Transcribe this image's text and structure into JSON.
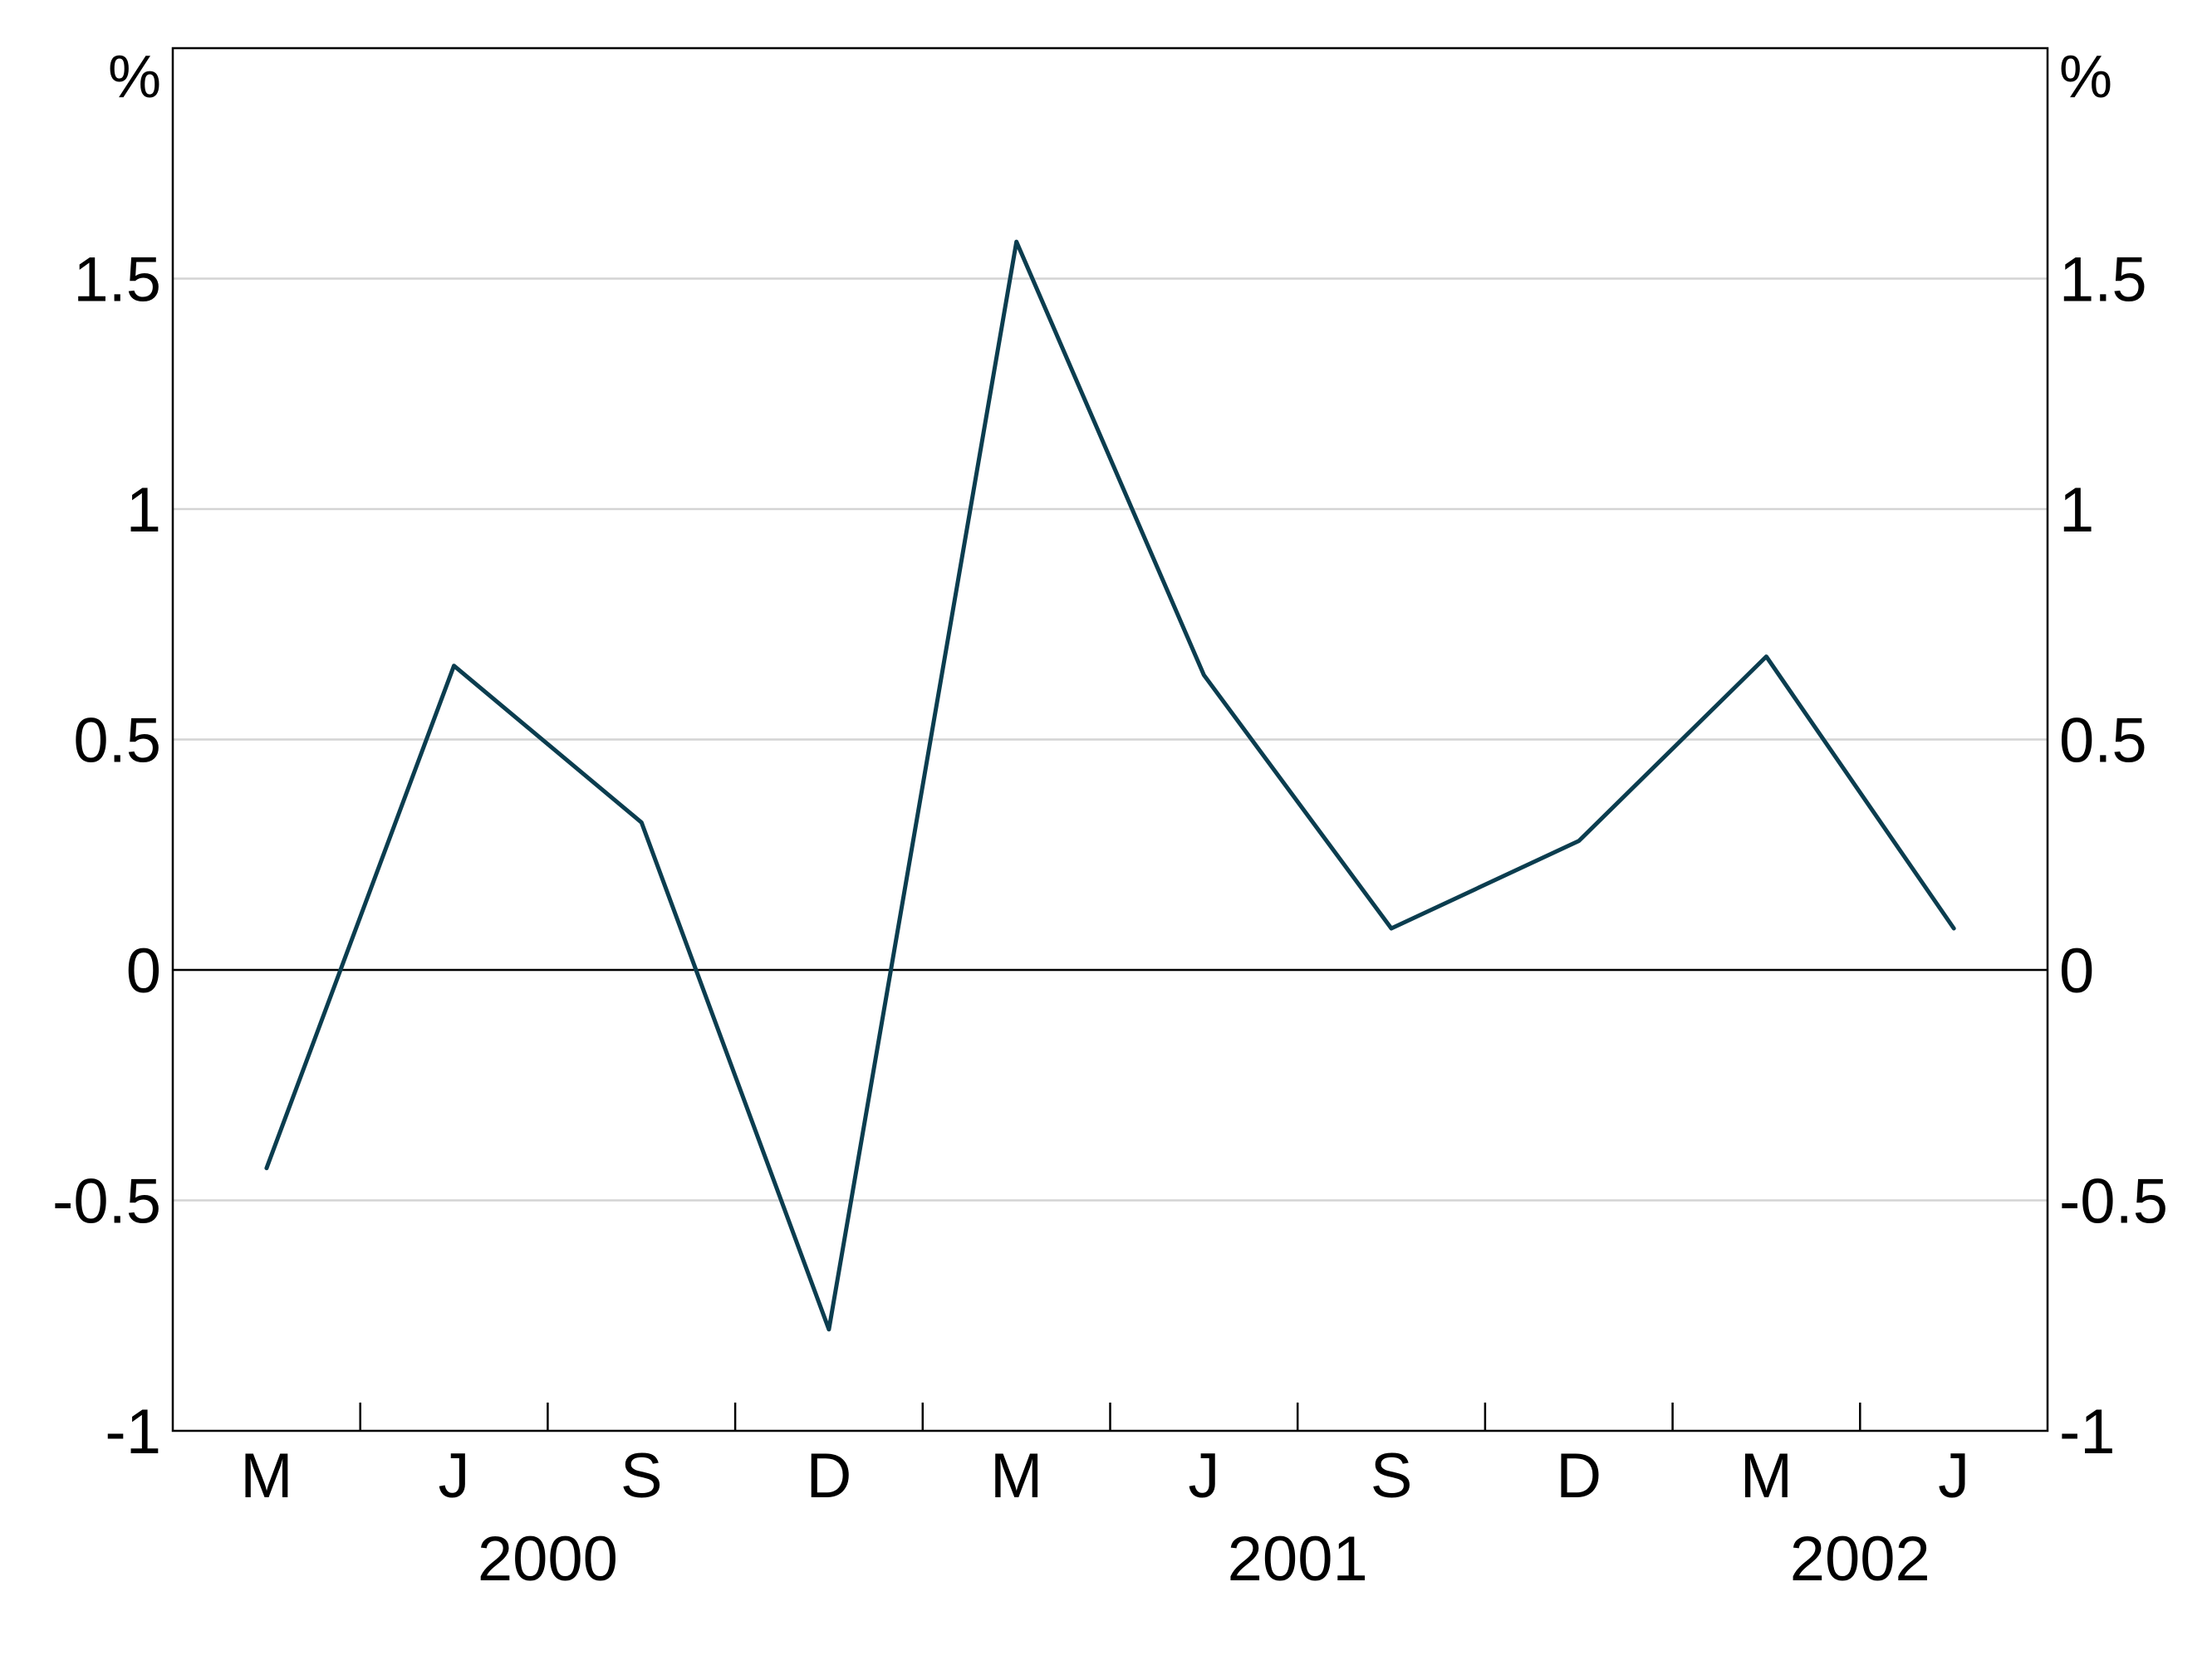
{
  "chart_data": {
    "type": "line",
    "title": "",
    "xlabel": "",
    "ylabel": "",
    "y_unit_left": "%",
    "y_unit_right": "%",
    "ylim": [
      -1,
      2
    ],
    "y_ticks": [
      -1,
      -0.5,
      0,
      0.5,
      1,
      1.5
    ],
    "y_tick_labels": [
      "-1",
      "-0.5",
      "0",
      "0.5",
      "1",
      "1.5"
    ],
    "grid": true,
    "zero_line": true,
    "x_ticks": [
      "Mar 2000",
      "Jun 2000",
      "Sep 2000",
      "Dec 2000",
      "Mar 2001",
      "Jun 2001",
      "Sep 2001",
      "Dec 2001",
      "Mar 2002",
      "Jun 2002"
    ],
    "x_tick_labels": [
      "M",
      "J",
      "S",
      "D",
      "M",
      "J",
      "S",
      "D",
      "M",
      "J"
    ],
    "x_year_labels": [
      {
        "label": "2000",
        "at": [
          "Mar 2000",
          "Dec 2000"
        ]
      },
      {
        "label": "2001",
        "at": [
          "Mar 2001",
          "Dec 2001"
        ]
      },
      {
        "label": "2002",
        "at": [
          "Mar 2002",
          "Jun 2002"
        ]
      }
    ],
    "series": [
      {
        "color": "#0b3d4f",
        "x": [
          "Mar 2000",
          "Jun 2000",
          "Sep 2000",
          "Dec 2000",
          "Mar 2001",
          "Jun 2001",
          "Sep 2001",
          "Dec 2001",
          "Mar 2002",
          "Jun 2002"
        ],
        "values": [
          -0.43,
          0.66,
          0.32,
          -0.78,
          1.58,
          0.64,
          0.09,
          0.28,
          0.68,
          0.09
        ]
      }
    ]
  }
}
